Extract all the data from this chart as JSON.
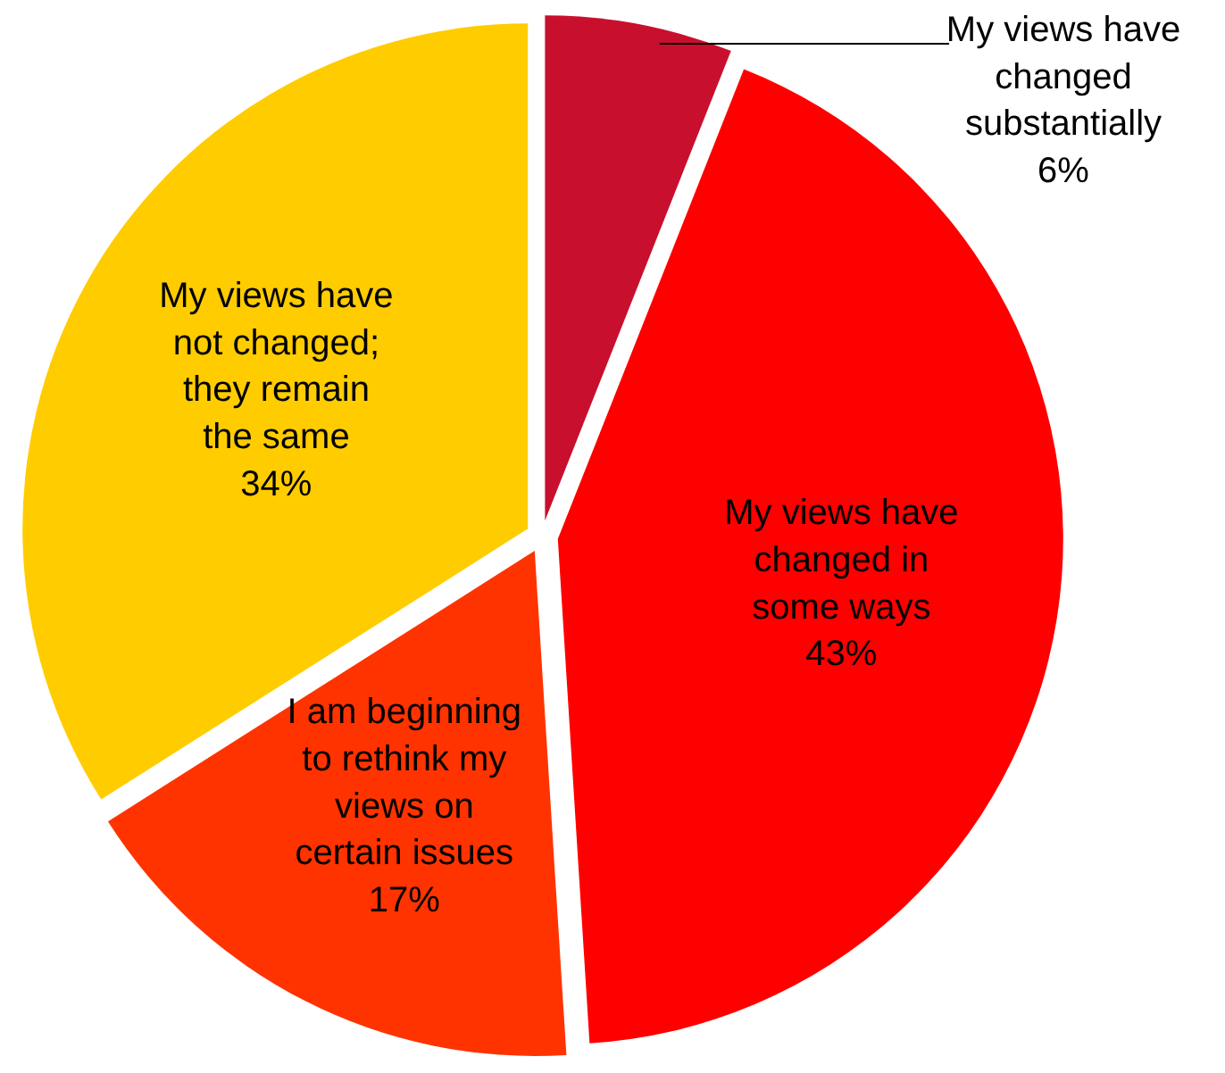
{
  "chart_data": {
    "type": "pie",
    "categories": [
      "My views have changed substantially",
      "My views have changed in some ways",
      "I am beginning to rethink my views on certain issues",
      "My views have not changed; they remain the same"
    ],
    "values": [
      6,
      43,
      17,
      34
    ],
    "colors": [
      "#c8102e",
      "#ff0000",
      "#ff3300",
      "#ffcc00"
    ],
    "value_labels": [
      "6%",
      "43%",
      "17%",
      "34%"
    ]
  }
}
